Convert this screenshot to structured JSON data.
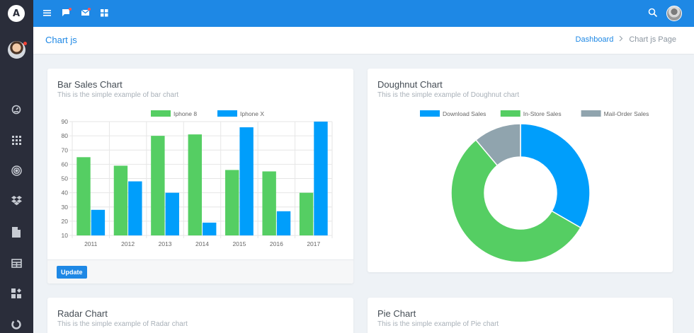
{
  "topbar": {
    "icons": [
      "menu-icon",
      "chat-icon",
      "mail-icon",
      "apps-icon",
      "search-icon"
    ]
  },
  "header": {
    "page_title": "Chart js",
    "breadcrumb": [
      "Dashboard",
      "Chart js Page"
    ]
  },
  "sidebar": {
    "logo_letter": "A",
    "icons": [
      "dashboard-icon",
      "apps-grid-icon",
      "target-icon",
      "dropbox-icon",
      "file-icon",
      "table-icon",
      "widgets-icon",
      "chart-pie-icon"
    ]
  },
  "cards": {
    "bar": {
      "title": "Bar Sales Chart",
      "subtitle": "This is the simple example of bar chart",
      "update_label": "Update"
    },
    "doughnut": {
      "title": "Doughnut Chart",
      "subtitle": "This is the simple example of Doughnut chart"
    },
    "radar": {
      "title": "Radar Chart",
      "subtitle": "This is the simple example of Radar chart"
    },
    "pie": {
      "title": "Pie Chart",
      "subtitle": "This is the simple example of Pie chart"
    }
  },
  "chart_data": [
    {
      "type": "bar",
      "categories": [
        "2011",
        "2012",
        "2013",
        "2014",
        "2015",
        "2016",
        "2017"
      ],
      "series": [
        {
          "name": "Iphone 8",
          "color": "#55ce63",
          "values": [
            65,
            59,
            80,
            81,
            56,
            55,
            40
          ]
        },
        {
          "name": "Iphone X",
          "color": "#009efb",
          "values": [
            28,
            48,
            40,
            19,
            86,
            27,
            90
          ]
        }
      ],
      "yticks": [
        10,
        20,
        30,
        40,
        50,
        60,
        70,
        80,
        90
      ],
      "ylim": [
        10,
        90
      ],
      "grid": true,
      "legend": "top-center"
    },
    {
      "type": "pie",
      "doughnut": true,
      "labels": [
        "Download Sales",
        "In-Store Sales",
        "Mail-Order Sales"
      ],
      "values": [
        300,
        500,
        100
      ],
      "colors": [
        "#009efb",
        "#55ce63",
        "#90a4ae"
      ],
      "legend": "top-center"
    }
  ]
}
